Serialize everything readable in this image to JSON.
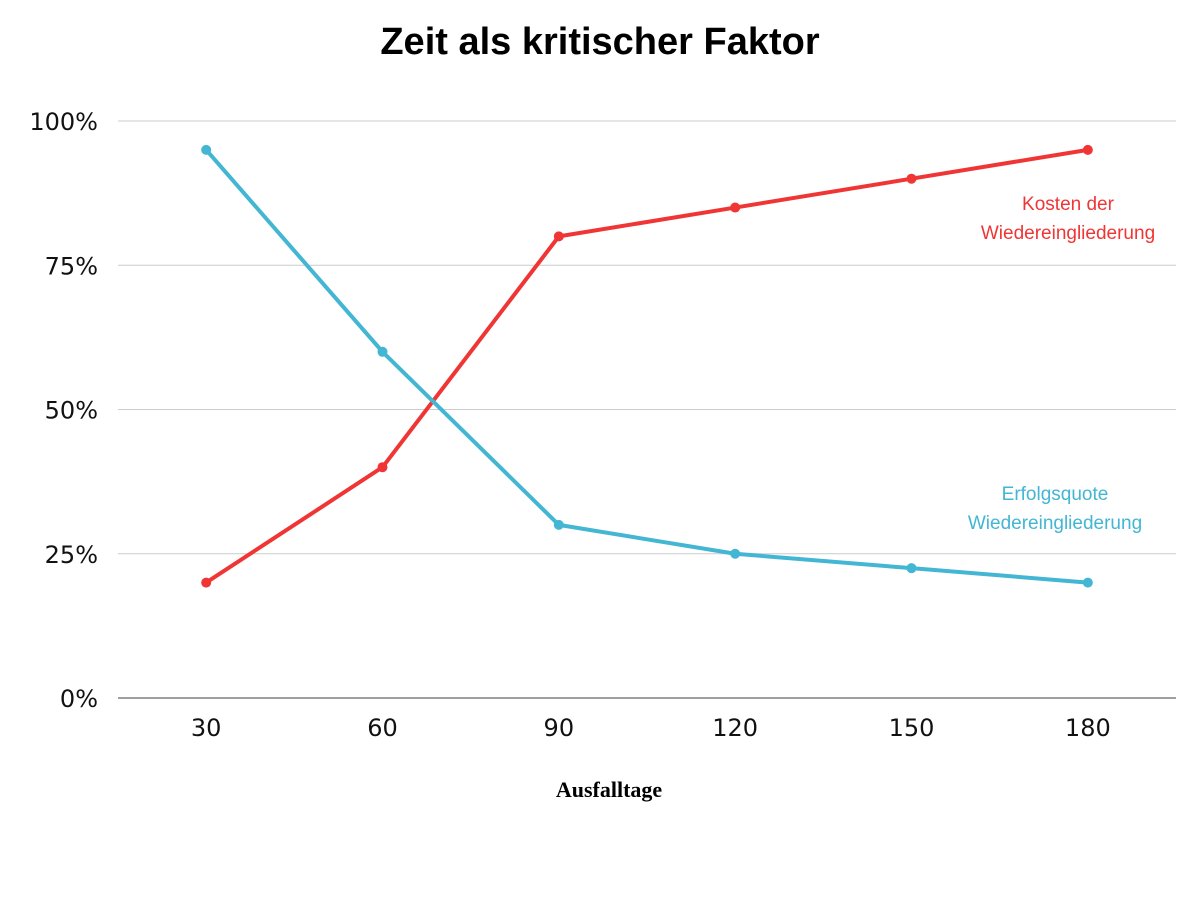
{
  "chart_data": {
    "type": "line",
    "title": "Zeit als kritischer Faktor",
    "x_label": "Ausfalltage",
    "categories": [
      "30",
      "60",
      "90",
      "120",
      "150",
      "180"
    ],
    "series": [
      {
        "name": "Kosten der Wiedereingliederung",
        "color": "#f03535",
        "values": [
          20,
          40,
          80,
          85,
          90,
          95
        ]
      },
      {
        "name": "Erfolgsquote Wiedereingliederung",
        "color": "#43b6d3",
        "values": [
          95,
          60,
          30,
          25,
          22.5,
          20
        ]
      }
    ],
    "ylim": [
      0,
      100
    ],
    "yticks": [
      {
        "value": 0,
        "label": "0%"
      },
      {
        "value": 25,
        "label": "25%"
      },
      {
        "value": 50,
        "label": "50%"
      },
      {
        "value": 75,
        "label": "75%"
      },
      {
        "value": 100,
        "label": "100%"
      }
    ],
    "grid": true
  }
}
